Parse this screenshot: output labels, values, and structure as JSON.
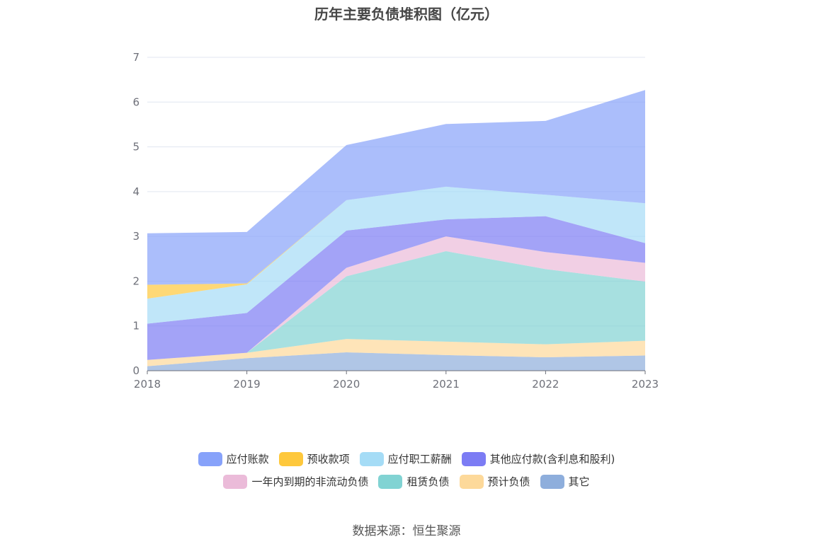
{
  "title": "历年主要负债堆积图（亿元）",
  "source": "数据来源：恒生聚源",
  "chart_data": {
    "type": "area",
    "stacked": true,
    "categories": [
      "2018",
      "2019",
      "2020",
      "2021",
      "2022",
      "2023"
    ],
    "ylim": [
      0,
      7
    ],
    "yticks": [
      "0",
      "1",
      "2",
      "3",
      "4",
      "5",
      "6",
      "7"
    ],
    "grid": true,
    "legend_position": "bottom",
    "series": [
      {
        "name": "其它",
        "color": "#8eaedc",
        "values": [
          0.1,
          0.28,
          0.41,
          0.35,
          0.3,
          0.34
        ]
      },
      {
        "name": "预计负债",
        "color": "#fdd99a",
        "values": [
          0.14,
          0.12,
          0.3,
          0.3,
          0.29,
          0.33
        ]
      },
      {
        "name": "租赁负债",
        "color": "#81d3d3",
        "values": [
          0.0,
          0.0,
          1.4,
          2.02,
          1.68,
          1.32
        ]
      },
      {
        "name": "一年内到期的非流动负债",
        "color": "#ebbbd9",
        "values": [
          0.0,
          0.0,
          0.19,
          0.33,
          0.38,
          0.42
        ]
      },
      {
        "name": "其他应付款(含利息和股利)",
        "color": "#7c7cf4",
        "values": [
          0.81,
          0.89,
          0.83,
          0.38,
          0.8,
          0.44
        ]
      },
      {
        "name": "应付职工薪酬",
        "color": "#a5dcf6",
        "values": [
          0.56,
          0.64,
          0.68,
          0.73,
          0.48,
          0.89
        ]
      },
      {
        "name": "预收款项",
        "color": "#fec83c",
        "values": [
          0.31,
          0.02,
          0.0,
          0.0,
          0.0,
          0.0
        ]
      },
      {
        "name": "应付账款",
        "color": "#87a2fa",
        "values": [
          1.15,
          1.15,
          1.23,
          1.4,
          1.65,
          2.53
        ]
      }
    ]
  },
  "legend_rows": [
    [
      {
        "name": "应付账款",
        "color": "#87a2fa"
      },
      {
        "name": "预收款项",
        "color": "#fec83c"
      },
      {
        "name": "应付职工薪酬",
        "color": "#a5dcf6"
      },
      {
        "name": "其他应付款(含利息和股利)",
        "color": "#7c7cf4"
      }
    ],
    [
      {
        "name": "一年内到期的非流动负债",
        "color": "#ebbbd9"
      },
      {
        "name": "租赁负债",
        "color": "#81d3d3"
      },
      {
        "name": "预计负债",
        "color": "#fdd99a"
      },
      {
        "name": "其它",
        "color": "#8eaedc"
      }
    ]
  ]
}
